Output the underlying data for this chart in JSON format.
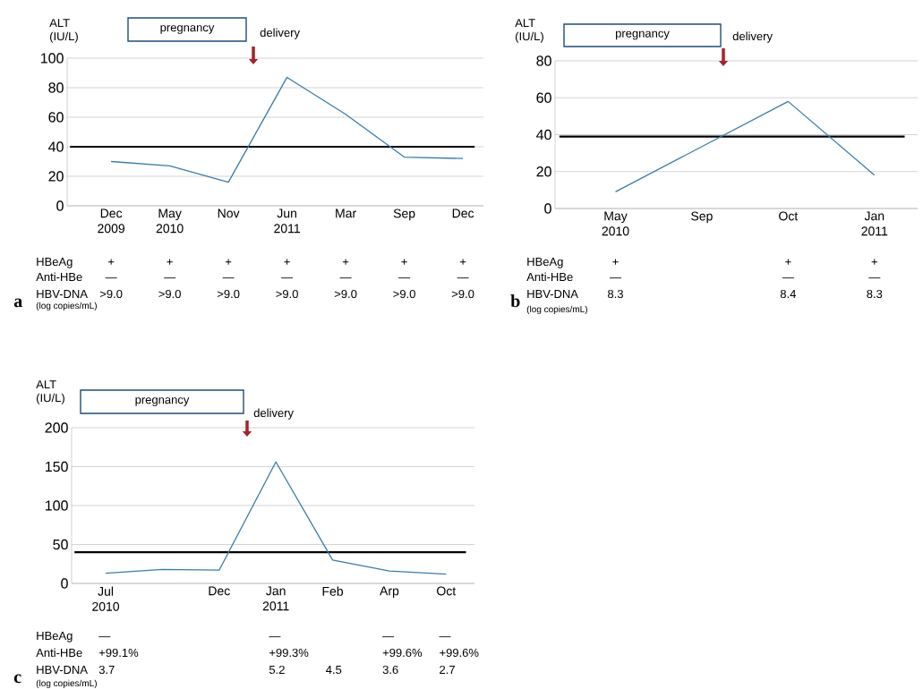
{
  "chart_data": [
    {
      "type": "line",
      "ylabel": "ALT (IU/L)",
      "categories": [
        "Dec 2009",
        "May 2010",
        "Nov",
        "Jun 2011",
        "Mar",
        "Sep",
        "Dec"
      ],
      "series": [
        {
          "color": "#3a7cab",
          "values": [
            30,
            27,
            16,
            87,
            62,
            33,
            32
          ]
        }
      ],
      "ylim": [
        0,
        100
      ],
      "yticks": [
        0,
        20,
        40,
        60,
        80,
        100
      ],
      "grid": "y",
      "ref_lines": [
        {
          "axis": "y",
          "value": 40,
          "color": "#000000"
        }
      ],
      "annotations": [
        "pregnancy",
        "delivery",
        "HBeAg",
        "Anti-HBe",
        "HBV-DNA",
        "(log copies/mL)",
        "a",
        "+",
        "+",
        "+",
        "+",
        "+",
        "+",
        "+",
        "—",
        "—",
        "—",
        "—",
        "—",
        "—",
        "—",
        ">9.0",
        ">9.0",
        ">9.0",
        ">9.0",
        ">9.0",
        ">9.0",
        ">9.0"
      ]
    },
    {
      "type": "line",
      "ylabel": "ALT (IU/L)",
      "categories": [
        "May 2010",
        "Sep",
        "Oct",
        "Jan 2011"
      ],
      "series": [
        {
          "color": "#3a7cab",
          "x": [
            "May 2010",
            "Oct",
            "Jan 2011"
          ],
          "values": [
            9,
            58,
            18
          ]
        }
      ],
      "ylim": [
        0,
        80
      ],
      "yticks": [
        0,
        20,
        40,
        60,
        80
      ],
      "grid": "y",
      "ref_lines": [
        {
          "axis": "y",
          "value": 39,
          "color": "#000000"
        }
      ],
      "annotations": [
        "pregnancy",
        "delivery",
        "HBeAg",
        "Anti-HBe",
        "HBV-DNA",
        "(log copies/mL)",
        "b",
        "+",
        "+",
        "+",
        "—",
        "—",
        "—",
        "8.3",
        "8.4",
        "8.3"
      ]
    },
    {
      "type": "line",
      "ylabel": "ALT (IU/L)",
      "categories": [
        "Jul 2010",
        null,
        "Dec",
        "Jan 2011",
        "Feb",
        "Arp",
        "Oct"
      ],
      "series": [
        {
          "color": "#3a7cab",
          "values": [
            13,
            18,
            17,
            156,
            30,
            16,
            12
          ]
        }
      ],
      "ylim": [
        0,
        200
      ],
      "yticks": [
        0,
        50,
        100,
        150,
        200
      ],
      "grid": "y",
      "ref_lines": [
        {
          "axis": "y",
          "value": 40,
          "color": "#000000"
        }
      ],
      "annotations": [
        "pregnancy",
        "delivery",
        "HBeAg",
        "Anti-HBe",
        "HBV-DNA",
        "(log copies/mL)",
        "c",
        "—",
        "—",
        "—",
        "—",
        "+99.1%",
        "+99.3%",
        "+99.6%",
        "+99.6%",
        "3.7",
        "5.2",
        "4.5",
        "3.6",
        "2.7"
      ]
    }
  ]
}
